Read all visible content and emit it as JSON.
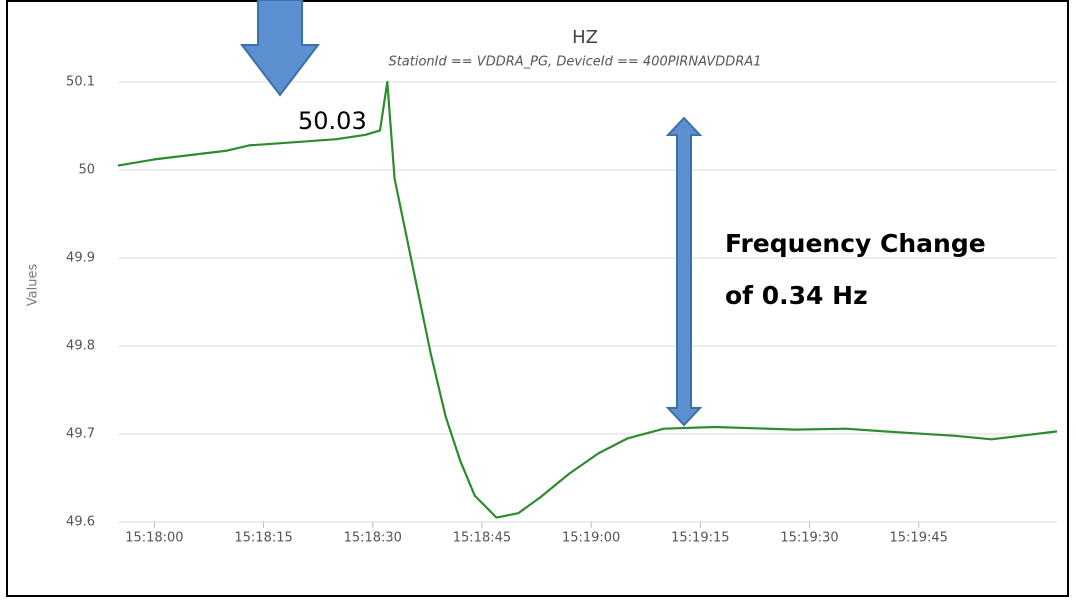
{
  "chart_data": {
    "type": "line",
    "title": "HZ",
    "subtitle": "StationId == VDDRA_PG, DeviceId == 400PIRNAVDDRA1",
    "y_label": "Values",
    "x": [
      "15:17:55",
      "15:18:00",
      "15:18:05",
      "15:18:10",
      "15:18:13",
      "15:18:20",
      "15:18:25",
      "15:18:29",
      "15:18:31",
      "15:18:32",
      "15:18:33",
      "15:18:34",
      "15:18:36",
      "15:18:38",
      "15:18:40",
      "15:18:42",
      "15:18:44",
      "15:18:47",
      "15:18:50",
      "15:18:53",
      "15:18:57",
      "15:19:01",
      "15:19:05",
      "15:19:10",
      "15:19:17",
      "15:19:28",
      "15:19:35",
      "15:19:42",
      "15:19:50",
      "15:19:55",
      "15:19:59",
      "15:20:04"
    ],
    "values": [
      50.005,
      50.012,
      50.017,
      50.022,
      50.028,
      50.032,
      50.035,
      50.04,
      50.045,
      50.1,
      49.99,
      49.95,
      49.87,
      49.79,
      49.72,
      49.67,
      49.63,
      49.605,
      49.61,
      49.628,
      49.655,
      49.678,
      49.695,
      49.706,
      49.708,
      49.705,
      49.706,
      49.702,
      49.698,
      49.694,
      49.698,
      49.703
    ],
    "color": "#2e8b2e",
    "xlim": [
      "15:17:55",
      "15:20:04"
    ],
    "xticks": [
      "15:18:00",
      "15:18:15",
      "15:18:30",
      "15:18:45",
      "15:19:00",
      "15:19:15",
      "15:19:30",
      "15:19:45"
    ],
    "ylim": [
      49.6,
      50.1
    ],
    "yticks": [
      50.1,
      50,
      49.9,
      49.8,
      49.7,
      49.6
    ],
    "grid": true,
    "annotations": [
      "50.03",
      "Frequency Change",
      "of 0.34 Hz"
    ]
  }
}
